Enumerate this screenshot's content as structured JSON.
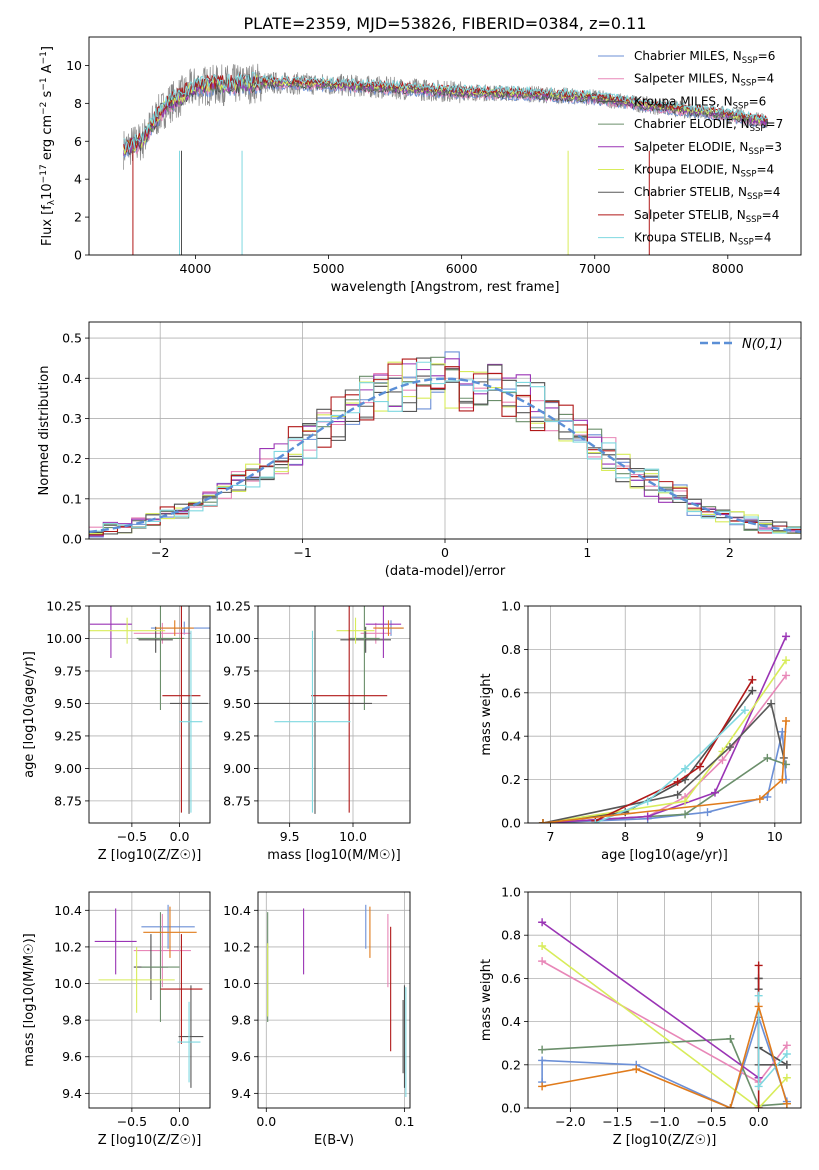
{
  "figure_title": "PLATE=2359, MJD=53826, FIBERID=0384, z=0.11",
  "colors": {
    "series": [
      "#6b8fd6",
      "#e887b8",
      "#4f4f4f",
      "#6b8f6b",
      "#9a34b5",
      "#d8ec5a",
      "#585858",
      "#b01818",
      "#7fd8e0"
    ],
    "orange": "#e07b1c"
  },
  "chart_data": [
    {
      "id": "spectrum",
      "type": "line",
      "title": "PLATE=2359, MJD=53826, FIBERID=0384, z=0.11",
      "xlabel": "wavelength [Angstrom, rest frame]",
      "ylabel": "Flux [f_λ 10^-17 erg cm^-2 s^-1 A^-1]",
      "xlim": [
        3200,
        8550
      ],
      "ylim": [
        0,
        11.5
      ],
      "xticks": [
        4000,
        5000,
        6000,
        7000,
        8000
      ],
      "yticks": [
        0,
        2,
        4,
        6,
        8,
        10
      ],
      "grid": false,
      "legend_position": "right",
      "data_observed": {
        "x_range": [
          3460,
          8300
        ],
        "anchor_x": [
          3460,
          3600,
          3700,
          3800,
          3900,
          4000,
          4300,
          4500,
          5000,
          5500,
          6000,
          6500,
          7000,
          7500,
          8000,
          8300
        ],
        "anchor_y": [
          5.6,
          6.0,
          7.2,
          8.0,
          8.4,
          8.9,
          9.0,
          9.1,
          9.0,
          8.8,
          8.6,
          8.5,
          8.3,
          7.8,
          7.4,
          7.0
        ]
      },
      "series": [
        {
          "name": "Chabrier MILES, N_SSP=6"
        },
        {
          "name": "Salpeter MILES, N_SSP=4"
        },
        {
          "name": "Kroupa MILES, N_SSP=6"
        },
        {
          "name": "Chabrier ELODIE, N_SSP=7"
        },
        {
          "name": "Salpeter ELODIE, N_SSP=3"
        },
        {
          "name": "Kroupa ELODIE, N_SSP=4"
        },
        {
          "name": "Chabrier STELIB, N_SSP=4"
        },
        {
          "name": "Salpeter STELIB, N_SSP=4"
        },
        {
          "name": "Kroupa STELIB, N_SSP=4"
        }
      ]
    },
    {
      "id": "residuals",
      "type": "histogram",
      "xlabel": "(data-model)/error",
      "ylabel": "Normed distribution",
      "xlim": [
        -2.5,
        2.5
      ],
      "ylim": [
        0,
        0.54
      ],
      "xticks": [
        -2,
        -1,
        0,
        1,
        2
      ],
      "yticks": [
        0.0,
        0.1,
        0.2,
        0.3,
        0.4,
        0.5
      ],
      "grid": true,
      "bin_width": 0.1,
      "legend": [
        {
          "name": "N(0,1)"
        }
      ],
      "legend_position": "top-right",
      "reference": "gaussian N(0,1)"
    },
    {
      "id": "age_vs_Z",
      "type": "errorbar",
      "xlabel": "Z [log10(Z/Z☉)]",
      "ylabel": "age  [log10(age/yr)]",
      "xlim": [
        -0.95,
        0.32
      ],
      "ylim": [
        8.58,
        10.25
      ],
      "xticks": [
        -0.5,
        0.0
      ],
      "yticks": [
        8.75,
        9.0,
        9.25,
        9.5,
        9.75,
        10.0,
        10.25
      ],
      "grid": true,
      "points": [
        {
          "x": 0.05,
          "y": 10.08,
          "xerr": 0.35,
          "yerr": 0.05,
          "c": 0
        },
        {
          "x": -0.18,
          "y": 10.04,
          "xerr": 0.3,
          "yerr": 0.08,
          "c": 1
        },
        {
          "x": -0.25,
          "y": 9.99,
          "xerr": 0.18,
          "yerr": 0.1,
          "c": 2
        },
        {
          "x": -0.2,
          "y": 10.0,
          "xerr": 0.25,
          "yerr": 0.55,
          "c": 3
        },
        {
          "x": -0.72,
          "y": 10.11,
          "xerr": 0.22,
          "yerr": 0.26,
          "c": 4
        },
        {
          "x": -0.55,
          "y": 10.06,
          "xerr": 0.4,
          "yerr": 0.1,
          "c": 5
        },
        {
          "x": 0.1,
          "y": 9.5,
          "xerr": 0.2,
          "yerr": 0.85,
          "c": 6
        },
        {
          "x": 0.02,
          "y": 9.56,
          "xerr": 0.2,
          "yerr": 0.9,
          "c": 7
        },
        {
          "x": 0.12,
          "y": 9.36,
          "xerr": 0.12,
          "yerr": 0.7,
          "c": 8
        },
        {
          "x": -0.05,
          "y": 10.08,
          "xerr": 0.2,
          "yerr": 0.06,
          "c": "orange"
        }
      ]
    },
    {
      "id": "age_vs_mass",
      "type": "errorbar",
      "xlabel": "mass [log10(M/M☉)]",
      "ylabel": "",
      "xlim": [
        9.25,
        10.45
      ],
      "ylim": [
        8.58,
        10.25
      ],
      "xticks": [
        9.5,
        10.0
      ],
      "yticks": [
        8.75,
        9.0,
        9.25,
        9.5,
        9.75,
        10.0,
        10.25
      ],
      "grid": true,
      "points": [
        {
          "x": 10.3,
          "y": 10.08,
          "xerr": 0.1,
          "yerr": 0.06,
          "c": 0
        },
        {
          "x": 10.18,
          "y": 10.04,
          "xerr": 0.12,
          "yerr": 0.08,
          "c": 1
        },
        {
          "x": 10.1,
          "y": 9.99,
          "xerr": 0.2,
          "yerr": 0.1,
          "c": 2
        },
        {
          "x": 10.09,
          "y": 10.0,
          "xerr": 0.12,
          "yerr": 0.55,
          "c": 3
        },
        {
          "x": 10.24,
          "y": 10.11,
          "xerr": 0.14,
          "yerr": 0.26,
          "c": 4
        },
        {
          "x": 10.02,
          "y": 10.06,
          "xerr": 0.15,
          "yerr": 0.1,
          "c": 5
        },
        {
          "x": 9.7,
          "y": 9.5,
          "xerr": 0.45,
          "yerr": 0.85,
          "c": 6
        },
        {
          "x": 9.97,
          "y": 9.56,
          "xerr": 0.3,
          "yerr": 0.9,
          "c": 7
        },
        {
          "x": 9.68,
          "y": 9.36,
          "xerr": 0.3,
          "yerr": 0.7,
          "c": 8
        },
        {
          "x": 10.28,
          "y": 10.08,
          "xerr": 0.12,
          "yerr": 0.06,
          "c": "orange"
        }
      ]
    },
    {
      "id": "massweight_vs_age",
      "type": "line",
      "xlabel": "age  [log10(age/yr)]",
      "ylabel": "mass weight",
      "xlim": [
        6.7,
        10.35
      ],
      "ylim": [
        0,
        1.0
      ],
      "xticks": [
        7,
        8,
        9,
        10
      ],
      "yticks": [
        0.0,
        0.2,
        0.4,
        0.6,
        0.8,
        1.0
      ],
      "grid": true,
      "series": [
        {
          "c": 0,
          "x": [
            6.9,
            8.3,
            9.1,
            9.9,
            10.1,
            10.15
          ],
          "y": [
            0.0,
            0.02,
            0.05,
            0.12,
            0.42,
            0.2
          ]
        },
        {
          "c": 1,
          "x": [
            6.9,
            8.3,
            8.8,
            9.3,
            10.15
          ],
          "y": [
            0.0,
            0.03,
            0.12,
            0.29,
            0.68
          ]
        },
        {
          "c": 2,
          "x": [
            6.9,
            8.0,
            8.8,
            9.7
          ],
          "y": [
            0.0,
            0.05,
            0.2,
            0.61
          ]
        },
        {
          "c": 3,
          "x": [
            6.9,
            8.8,
            9.9,
            10.15
          ],
          "y": [
            0.0,
            0.04,
            0.3,
            0.27
          ]
        },
        {
          "c": 4,
          "x": [
            6.9,
            8.3,
            9.2,
            10.15
          ],
          "y": [
            0.0,
            0.03,
            0.14,
            0.86
          ]
        },
        {
          "c": 5,
          "x": [
            6.9,
            8.8,
            9.3,
            10.15
          ],
          "y": [
            0.0,
            0.1,
            0.33,
            0.75
          ]
        },
        {
          "c": 6,
          "x": [
            6.9,
            8.7,
            9.4,
            9.95,
            10.12
          ],
          "y": [
            0.0,
            0.13,
            0.35,
            0.55,
            0.3
          ]
        },
        {
          "c": 7,
          "x": [
            7.6,
            8.7,
            9.0,
            9.7
          ],
          "y": [
            0.01,
            0.19,
            0.26,
            0.66
          ]
        },
        {
          "c": 8,
          "x": [
            7.6,
            8.3,
            8.8,
            9.6
          ],
          "y": [
            0.0,
            0.1,
            0.25,
            0.52
          ]
        },
        {
          "c": "orange",
          "x": [
            6.9,
            9.8,
            10.1,
            10.15
          ],
          "y": [
            0.0,
            0.11,
            0.2,
            0.47
          ]
        }
      ]
    },
    {
      "id": "mass_vs_Z",
      "type": "errorbar",
      "xlabel": "Z [log10(Z/Z☉)]",
      "ylabel": "mass [log10(M/M☉)]",
      "xlim": [
        -0.95,
        0.32
      ],
      "ylim": [
        9.32,
        10.5
      ],
      "xticks": [
        -0.5,
        0.0
      ],
      "yticks": [
        9.4,
        9.6,
        9.8,
        10.0,
        10.2,
        10.4
      ],
      "grid": true,
      "points": [
        {
          "x": -0.12,
          "y": 10.31,
          "xerr": 0.28,
          "yerr": 0.12,
          "c": 0
        },
        {
          "x": -0.18,
          "y": 10.18,
          "xerr": 0.3,
          "yerr": 0.2,
          "c": 1
        },
        {
          "x": -0.3,
          "y": 10.09,
          "xerr": 0.18,
          "yerr": 0.18,
          "c": 2
        },
        {
          "x": -0.2,
          "y": 10.09,
          "xerr": 0.2,
          "yerr": 0.3,
          "c": 3
        },
        {
          "x": -0.67,
          "y": 10.23,
          "xerr": 0.22,
          "yerr": 0.18,
          "c": 4
        },
        {
          "x": -0.45,
          "y": 10.02,
          "xerr": 0.4,
          "yerr": 0.18,
          "c": 5
        },
        {
          "x": 0.12,
          "y": 9.71,
          "xerr": 0.13,
          "yerr": 0.28,
          "c": 6
        },
        {
          "x": 0.02,
          "y": 9.97,
          "xerr": 0.22,
          "yerr": 0.3,
          "c": 7
        },
        {
          "x": 0.1,
          "y": 9.68,
          "xerr": 0.12,
          "yerr": 0.22,
          "c": 8
        },
        {
          "x": -0.1,
          "y": 10.28,
          "xerr": 0.28,
          "yerr": 0.14,
          "c": "orange"
        }
      ]
    },
    {
      "id": "mass_vs_ebv",
      "type": "errorbar",
      "xlabel": "E(B-V)",
      "ylabel": "",
      "xlim": [
        -0.006,
        0.104
      ],
      "ylim": [
        9.32,
        10.5
      ],
      "xticks": [
        0.0,
        0.1
      ],
      "yticks": [
        9.4,
        9.6,
        9.8,
        10.0,
        10.2,
        10.4
      ],
      "grid": true,
      "points": [
        {
          "x": 0.072,
          "y": 10.31,
          "xerr": 0,
          "yerr": 0.12,
          "c": 0
        },
        {
          "x": 0.088,
          "y": 10.18,
          "xerr": 0,
          "yerr": 0.2,
          "c": 1
        },
        {
          "x": 0.1,
          "y": 9.71,
          "xerr": 0,
          "yerr": 0.28,
          "c": 2
        },
        {
          "x": 0.001,
          "y": 10.09,
          "xerr": 0,
          "yerr": 0.3,
          "c": 3
        },
        {
          "x": 0.027,
          "y": 10.23,
          "xerr": 0,
          "yerr": 0.18,
          "c": 4
        },
        {
          "x": 0.001,
          "y": 10.02,
          "xerr": 0,
          "yerr": 0.2,
          "c": 5
        },
        {
          "x": 0.099,
          "y": 9.71,
          "xerr": 0,
          "yerr": 0.2,
          "c": 6
        },
        {
          "x": 0.09,
          "y": 9.97,
          "xerr": 0,
          "yerr": 0.34,
          "c": 7
        },
        {
          "x": 0.101,
          "y": 9.68,
          "xerr": 0,
          "yerr": 0.3,
          "c": 8
        },
        {
          "x": 0.075,
          "y": 10.28,
          "xerr": 0,
          "yerr": 0.14,
          "c": "orange"
        }
      ]
    },
    {
      "id": "massweight_vs_Z",
      "type": "line",
      "xlabel": "Z [log10(Z/Z☉)]",
      "ylabel": "mass weight",
      "xlim": [
        -2.45,
        0.45
      ],
      "ylim": [
        0,
        1.0
      ],
      "xticks": [
        -2.0,
        -1.5,
        -1.0,
        -0.5,
        0.0
      ],
      "yticks": [
        0.0,
        0.2,
        0.4,
        0.6,
        0.8,
        1.0
      ],
      "grid": true,
      "series": [
        {
          "c": 0,
          "x": [
            -2.3,
            -2.3,
            -1.3,
            -0.3,
            0.0,
            0.3
          ],
          "y": [
            0.12,
            0.22,
            0.2,
            0.0,
            0.42,
            0.03
          ]
        },
        {
          "c": 1,
          "x": [
            -2.3,
            0.0,
            0.3
          ],
          "y": [
            0.68,
            0.12,
            0.29
          ]
        },
        {
          "c": 2,
          "x": [
            0.0,
            0.0,
            0.0,
            0.3
          ],
          "y": [
            0.6,
            0.55,
            0.28,
            0.2
          ]
        },
        {
          "c": 3,
          "x": [
            -2.3,
            -0.3,
            0.0,
            0.3
          ],
          "y": [
            0.27,
            0.32,
            0.01,
            0.02
          ]
        },
        {
          "c": 4,
          "x": [
            -2.3,
            0.0
          ],
          "y": [
            0.86,
            0.14
          ]
        },
        {
          "c": 5,
          "x": [
            -2.3,
            0.0,
            0.3
          ],
          "y": [
            0.75,
            0.0,
            0.14
          ]
        },
        {
          "c": 6,
          "x": [
            0.0,
            0.0,
            0.3
          ],
          "y": [
            0.6,
            0.2,
            0.2
          ]
        },
        {
          "c": 7,
          "x": [
            0.0,
            0.0
          ],
          "y": [
            0.66,
            0.0
          ]
        },
        {
          "c": 8,
          "x": [
            0.0,
            0.0,
            0.3
          ],
          "y": [
            0.52,
            0.1,
            0.25
          ]
        },
        {
          "c": "orange",
          "x": [
            -2.3,
            -1.3,
            -0.3,
            0.0,
            0.3
          ],
          "y": [
            0.1,
            0.18,
            0.0,
            0.47,
            0.02
          ]
        }
      ]
    }
  ]
}
